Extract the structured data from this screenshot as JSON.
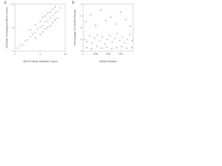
{
  "chart_data": [
    {
      "type": "scatter",
      "label": "A",
      "x_label": "qPCR Mean Relative Count",
      "y_label": "DESeq2 Normalized Mean Count",
      "xlim": [
        0,
        10
      ],
      "ylim": [
        0,
        10
      ],
      "xticks": [
        0,
        5,
        10
      ],
      "yticks": [
        0,
        5,
        10
      ],
      "series": [
        {
          "color": "#a9a9a9",
          "x": [
            0.5,
            1,
            1.5,
            2,
            2.5,
            3,
            3.5,
            4,
            4.5,
            5,
            5.5,
            6,
            6.5,
            7,
            7.5,
            8,
            8.5,
            9
          ],
          "values": [
            0.7,
            1.2,
            1.4,
            2.2,
            2.4,
            3.1,
            3.6,
            3.9,
            4.7,
            5.1,
            5.4,
            6.2,
            6.4,
            7.1,
            7.6,
            8.1,
            8.4,
            9.2
          ]
        },
        {
          "color": "#e0738a",
          "x": [
            3,
            4,
            5,
            5.5,
            6,
            6.5,
            7,
            7.5,
            8
          ],
          "values": [
            4.5,
            5.6,
            6.4,
            7.2,
            7.5,
            8.1,
            8.3,
            8.9,
            9.4
          ]
        },
        {
          "color": "#5ba3d9",
          "x": [
            4,
            5,
            5.5,
            6,
            6.5,
            7,
            7.5,
            8,
            8.5
          ],
          "values": [
            2.8,
            3.6,
            4.1,
            4.7,
            5.0,
            5.4,
            6.1,
            6.6,
            7.0
          ]
        }
      ]
    },
    {
      "type": "scatter",
      "label": "B",
      "x_label": "sRNA Number",
      "y_label": "Percentage of Control Reads",
      "xlim": [
        0,
        10000
      ],
      "ylim": [
        0,
        4
      ],
      "xticks": [
        0,
        2500,
        5000,
        7500
      ],
      "yticks": [
        0,
        1,
        2,
        3,
        4
      ],
      "series": [
        {
          "color": "#a9a9a9",
          "x": [
            300,
            800,
            1300,
            1800,
            2300,
            2800,
            3300,
            3800,
            4300,
            4800,
            5300,
            5800,
            6300,
            6800,
            7300,
            7800,
            8300,
            8800,
            9300,
            9800
          ],
          "values": [
            1.0,
            0.8,
            1.3,
            0.7,
            1.1,
            1.4,
            0.9,
            1.2,
            0.6,
            1.0,
            1.3,
            0.8,
            1.1,
            1.5,
            0.9,
            1.2,
            0.7,
            1.0,
            1.4,
            0.9
          ]
        },
        {
          "color": "#e0738a",
          "x": [
            500,
            1500,
            2500,
            3500,
            4500,
            5500,
            6500,
            7500,
            8500,
            9500
          ],
          "values": [
            2.5,
            3.1,
            2.2,
            3.5,
            2.6,
            2.9,
            2.3,
            3.3,
            2.7,
            2.1
          ]
        },
        {
          "color": "#5ba3d9",
          "x": [
            700,
            1700,
            2700,
            3700,
            4700,
            5700,
            6700,
            7700,
            8700,
            9700
          ],
          "values": [
            0.3,
            0.2,
            0.4,
            0.25,
            0.35,
            0.2,
            0.3,
            0.4,
            0.25,
            0.3
          ]
        }
      ]
    }
  ]
}
